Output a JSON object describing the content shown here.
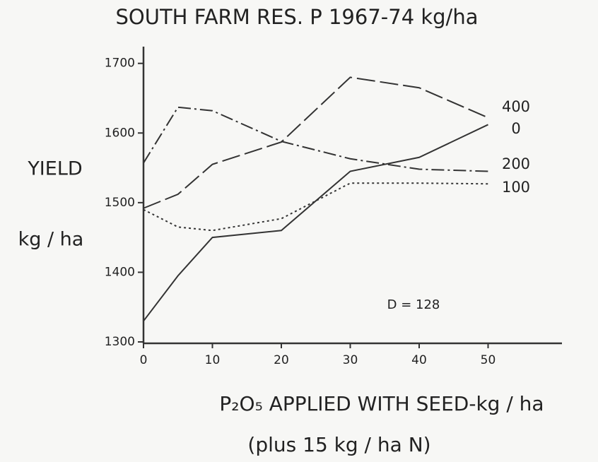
{
  "chart_data": {
    "type": "line",
    "title": "SOUTH FARM RES. P 1967-74 kg/ha",
    "ylabel": [
      "YIELD",
      "kg / ha"
    ],
    "xlabel": [
      "P₂O₅ APPLIED WITH SEED-kg / ha",
      "(plus 15 kg / ha N)"
    ],
    "annotation": "D = 128",
    "x": [
      0,
      5,
      10,
      20,
      30,
      40,
      50
    ],
    "series": [
      {
        "name": "400",
        "color": "#333333",
        "dash": "long",
        "values": [
          1492,
          1512,
          1555,
          1587,
          1680,
          1665,
          1622
        ]
      },
      {
        "name": "0",
        "color": "#333333",
        "dash": "solid",
        "values": [
          1330,
          1395,
          1450,
          1460,
          1545,
          1565,
          1612
        ]
      },
      {
        "name": "200",
        "color": "#333333",
        "dash": "dashdot",
        "values": [
          1557,
          1637,
          1632,
          1588,
          1563,
          1548,
          1545
        ]
      },
      {
        "name": "100",
        "color": "#333333",
        "dash": "dotted",
        "values": [
          1490,
          1465,
          1460,
          1477,
          1528,
          1528,
          1527
        ]
      }
    ],
    "xlim": [
      0,
      60
    ],
    "ylim": [
      1300,
      1720
    ],
    "xticks": [
      0,
      10,
      20,
      30,
      40,
      50
    ],
    "yticks": [
      1300,
      1400,
      1500,
      1600,
      1700
    ],
    "grid": false
  }
}
